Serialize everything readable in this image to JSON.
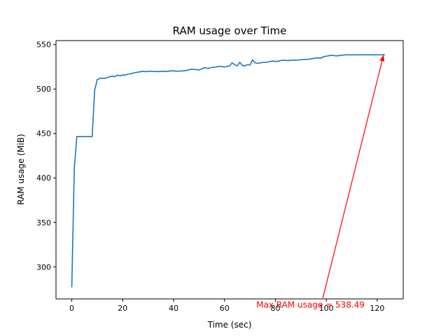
{
  "chart_data": {
    "type": "line",
    "title": "RAM usage over Time",
    "xlabel": "Time (sec)",
    "ylabel": "RAM usage (MiB)",
    "xlim": [
      -6.2,
      130.2
    ],
    "ylim": [
      264,
      554.5
    ],
    "xticks": [
      0,
      20,
      40,
      60,
      80,
      100,
      120
    ],
    "yticks": [
      300,
      350,
      400,
      450,
      500,
      550
    ],
    "grid": false,
    "line_color": "#1f77b4",
    "annotation_color": "#ff0000",
    "series": [
      {
        "x": [
          0,
          1,
          2,
          3,
          4,
          5,
          6,
          7,
          8,
          9,
          10,
          11,
          12,
          13,
          14,
          15,
          16,
          17,
          18,
          19,
          20,
          21,
          22,
          23,
          24,
          25,
          26,
          27,
          28,
          29,
          30,
          31,
          32,
          33,
          34,
          35,
          36,
          37,
          38,
          39,
          40,
          41,
          42,
          43,
          44,
          45,
          46,
          47,
          48,
          49,
          50,
          51,
          52,
          53,
          54,
          55,
          56,
          57,
          58,
          59,
          60,
          61,
          62,
          63,
          64,
          65,
          66,
          67,
          68,
          69,
          70,
          71,
          72,
          73,
          74,
          75,
          76,
          77,
          78,
          79,
          80,
          81,
          82,
          83,
          84,
          85,
          86,
          87,
          88,
          89,
          90,
          91,
          92,
          93,
          94,
          95,
          96,
          97,
          98,
          99,
          100,
          101,
          102,
          103,
          104,
          105,
          106,
          107,
          108,
          109,
          110,
          111,
          112,
          113,
          114,
          115,
          116,
          117,
          118,
          119,
          120,
          121,
          122,
          123
        ],
        "y": [
          277,
          412,
          446.5,
          446.5,
          446.5,
          446.5,
          446.5,
          446.5,
          446.5,
          499,
          510.5,
          512,
          512.2,
          512,
          513,
          514,
          514.5,
          514,
          515.8,
          514.8,
          516,
          515.5,
          517,
          517,
          518,
          518.5,
          519,
          519.5,
          520,
          519.5,
          520,
          520,
          519.8,
          519.7,
          519.6,
          519.8,
          520,
          519.8,
          520,
          520.5,
          520.4,
          520.2,
          520,
          520.4,
          520.5,
          521,
          521.5,
          522.5,
          522,
          522,
          521.5,
          522.5,
          524,
          523.5,
          523.5,
          524.3,
          524.5,
          525,
          525.5,
          525.3,
          524.8,
          525.5,
          526,
          529.5,
          527.5,
          526,
          530.2,
          526.5,
          526,
          527.5,
          527,
          533,
          529.5,
          529,
          529.3,
          530,
          530,
          530.5,
          531,
          531.5,
          531,
          531.3,
          532,
          532.5,
          532.2,
          532,
          532.3,
          532.5,
          532.5,
          532.6,
          533,
          533.2,
          533.4,
          533.5,
          534,
          534.5,
          535,
          535,
          534.8,
          536.5,
          537,
          537.5,
          538,
          537.6,
          537.3,
          537.6,
          538,
          538.3,
          538.5,
          538.5,
          538.4,
          538.5,
          538.5,
          538.5,
          538.5,
          538.5,
          538.5,
          538.5,
          538.5,
          538.5,
          538.5,
          538.5,
          538.5,
          538.49
        ]
      }
    ],
    "annotation": {
      "text": "Max RAM usage = 538.49",
      "point": [
        122.5,
        538.49
      ],
      "text_anchor": [
        72.5,
        254
      ]
    }
  }
}
